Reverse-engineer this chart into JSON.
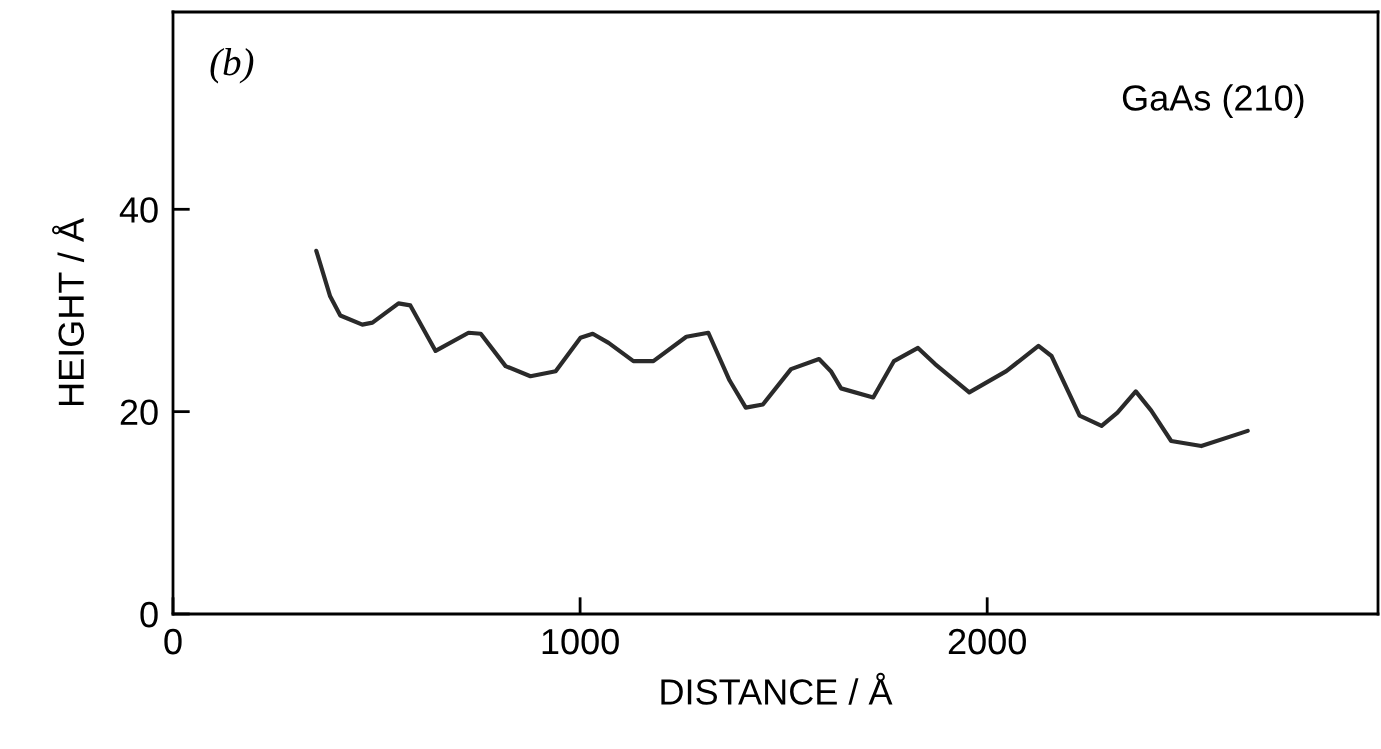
{
  "chart_data": {
    "type": "line",
    "xlabel": "DISTANCE / Å",
    "ylabel": "HEIGHT / Å",
    "annotations": [
      "(b)",
      "GaAs (210)"
    ],
    "xlim": [
      0,
      2960
    ],
    "ylim": [
      0,
      59.5
    ],
    "xticks": [
      0,
      1000,
      2000
    ],
    "yticks": [
      0,
      20,
      40
    ],
    "grid": false,
    "legend": false,
    "marker": "none",
    "line_style": "solid",
    "series": [
      {
        "color": "#2a2a2a",
        "x": [
          352,
          386,
          411,
          465,
          490,
          554,
          583,
          645,
          726,
          756,
          817,
          878,
          940,
          1001,
          1031,
          1070,
          1131,
          1180,
          1261,
          1315,
          1367,
          1407,
          1449,
          1518,
          1587,
          1616,
          1641,
          1720,
          1771,
          1830,
          1872,
          1956,
          2047,
          2126,
          2158,
          2227,
          2281,
          2320,
          2365,
          2403,
          2452,
          2526,
          2625,
          2640
        ],
        "values": [
          35.9,
          31.4,
          29.5,
          28.6,
          28.8,
          30.7,
          30.5,
          26.0,
          27.8,
          27.7,
          24.5,
          23.5,
          24.0,
          27.3,
          27.7,
          26.8,
          25.0,
          25.0,
          27.4,
          27.8,
          23.1,
          20.4,
          20.7,
          24.2,
          25.2,
          24.0,
          22.3,
          21.4,
          25.0,
          26.3,
          24.7,
          21.9,
          24.0,
          26.5,
          25.5,
          19.6,
          18.6,
          19.9,
          22.0,
          20.1,
          17.1,
          16.6,
          17.9,
          18.1
        ]
      }
    ]
  }
}
